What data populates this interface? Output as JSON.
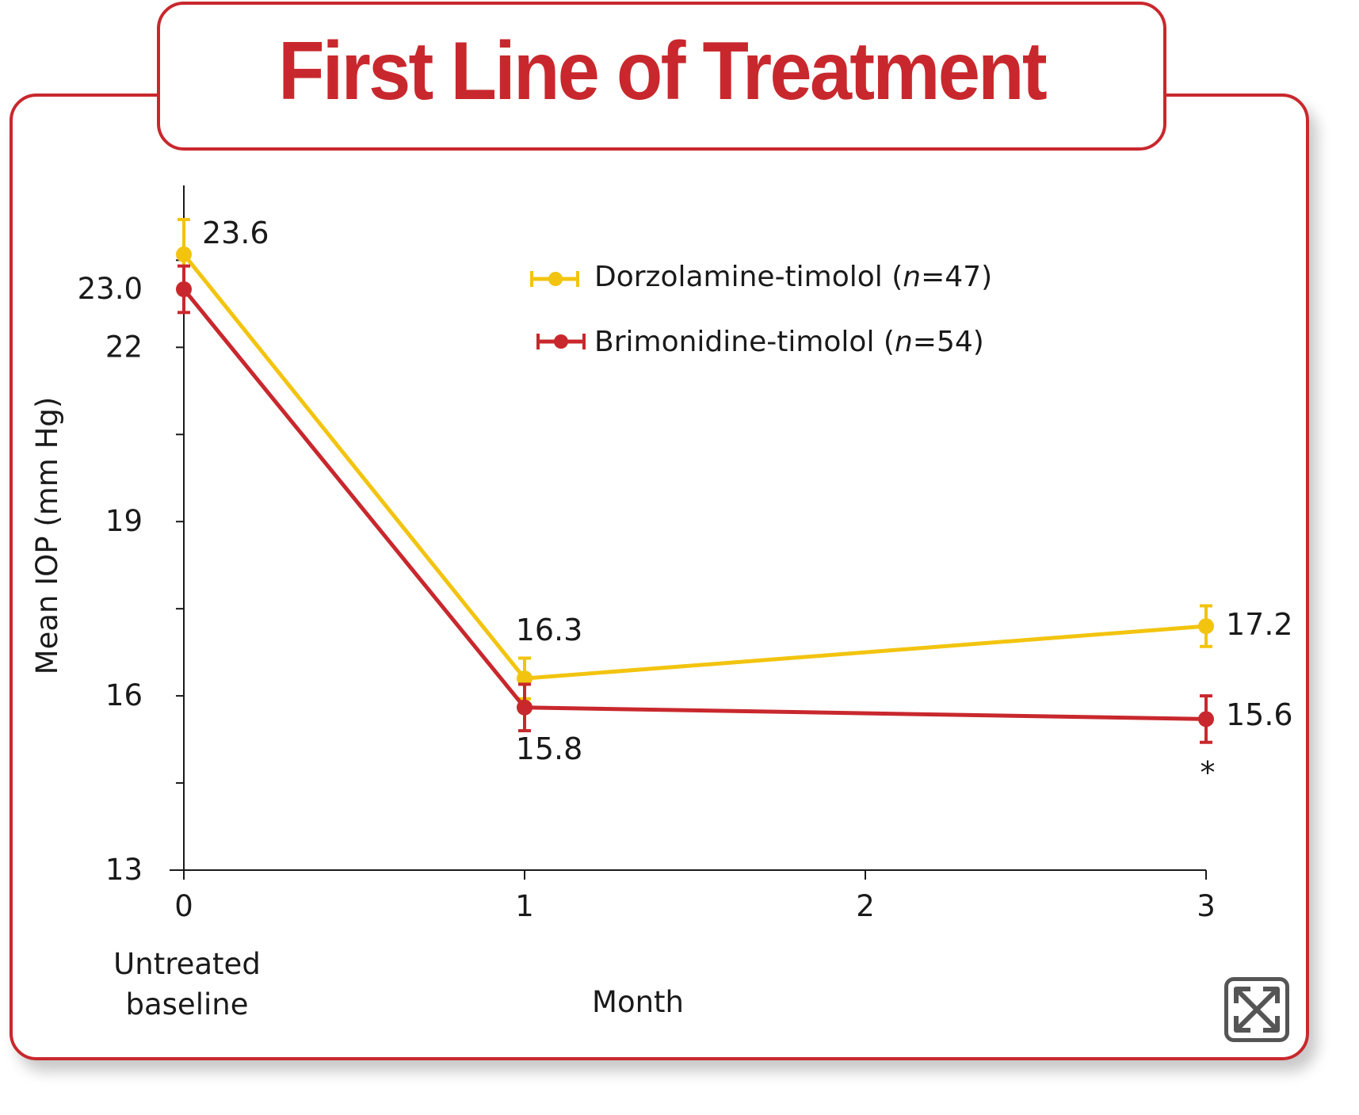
{
  "title": "First Line of Treatment",
  "expand_icon": "expand-arrows-icon",
  "colors": {
    "accent": "#c8282d",
    "series1": "#f2c40f",
    "series2": "#c8282d"
  },
  "chart_data": {
    "type": "line",
    "title": "First Line of Treatment",
    "ylabel": "Mean IOP (mm Hg)",
    "xlabel": "Month",
    "x_ticks": [
      "0",
      "1",
      "2",
      "3"
    ],
    "x_extra_label_lines": [
      "Untreated",
      "baseline"
    ],
    "y_ticks": [
      "13",
      "16",
      "19",
      "22",
      "23.0"
    ],
    "y_tick_values": [
      13,
      16,
      19,
      22,
      23.0
    ],
    "xlim": [
      0,
      3
    ],
    "ylim": [
      13,
      24.5
    ],
    "grid": false,
    "legend_position": "top-right",
    "annotation": "*",
    "series": [
      {
        "name": "Dorzolamine-timolol (n=47)",
        "name_prefix": "Dorzolamine-timolol (",
        "name_italic": "n",
        "name_suffix": "=47)",
        "color": "#f2c40f",
        "x": [
          0,
          1,
          3
        ],
        "values": [
          23.6,
          16.3,
          17.2
        ],
        "labels": [
          "23.6",
          "16.3",
          "17.2"
        ],
        "error": [
          0.6,
          0.35,
          0.35
        ]
      },
      {
        "name": "Brimonidine-timolol (n=54)",
        "name_prefix": "Brimonidine-timolol (",
        "name_italic": "n",
        "name_suffix": "=54)",
        "color": "#c8282d",
        "x": [
          0,
          1,
          3
        ],
        "values": [
          23.0,
          15.8,
          15.6
        ],
        "labels": [
          "23.0",
          "15.8",
          "15.6"
        ],
        "error": [
          0.4,
          0.4,
          0.4
        ]
      }
    ]
  }
}
